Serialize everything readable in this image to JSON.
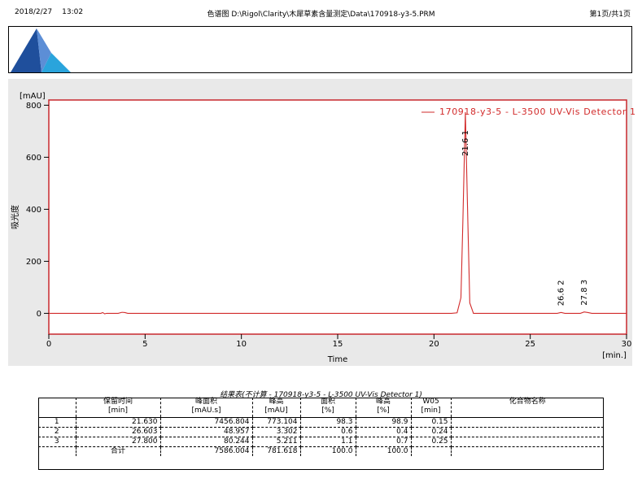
{
  "header": {
    "date": "2018/2/27",
    "time": "13:02",
    "file_path": "色谱图 D:\\Rigol\\Clarity\\木犀草素含量测定\\Data\\170918-y3-5.PRM",
    "page_info": "第1页/共1页"
  },
  "chart_data": {
    "type": "line",
    "title": "",
    "ylabel": "吸光度",
    "yunit": "[mAU]",
    "xlabel": "Time",
    "xunit": "[min.]",
    "xlim": [
      0,
      30
    ],
    "ylim": [
      -80,
      820
    ],
    "xticks": [
      0,
      5,
      10,
      15,
      20,
      25,
      30
    ],
    "yticks": [
      0,
      200,
      400,
      600,
      800
    ],
    "grid": false,
    "legend_position": "top-right",
    "series_color": "#d22b2b",
    "series": [
      {
        "name": "170918-y3-5 - L-3500 UV-Vis Detector 1",
        "x": [
          0,
          2.7,
          2.8,
          2.9,
          3.0,
          3.6,
          3.8,
          3.95,
          4.1,
          20.9,
          21.2,
          21.4,
          21.5,
          21.63,
          21.76,
          21.86,
          22.05,
          22.4,
          26.4,
          26.6,
          26.8,
          27.6,
          27.8,
          28.0,
          28.2,
          30
        ],
        "y": [
          0,
          0,
          3,
          -2,
          0,
          0,
          4,
          3,
          0,
          0,
          2,
          60,
          350,
          773.1,
          350,
          40,
          0,
          0,
          0,
          3.3,
          0,
          0,
          5.2,
          3,
          0,
          0
        ]
      }
    ],
    "peak_annotations": [
      {
        "label": "21.6  1",
        "x": 21.63,
        "y": 773.1
      },
      {
        "label": "26.6  2",
        "x": 26.603,
        "y": 3.3
      },
      {
        "label": "27.8  3",
        "x": 27.8,
        "y": 5.2
      }
    ]
  },
  "table": {
    "title": "结果表(不计算 - 170918-y3-5 - L-3500 UV-Vis Detector 1)",
    "headers": [
      {
        "line1": "",
        "line2": ""
      },
      {
        "line1": "保留时间",
        "line2": "[min]"
      },
      {
        "line1": "峰面积",
        "line2": "[mAU.s]"
      },
      {
        "line1": "峰高",
        "line2": "[mAU]"
      },
      {
        "line1": "面积",
        "line2": "[%]"
      },
      {
        "line1": "峰高",
        "line2": "[%]"
      },
      {
        "line1": "W05",
        "line2": "[min]"
      },
      {
        "line1": "化合物名称",
        "line2": ""
      }
    ],
    "rows": [
      [
        "1",
        "21.630",
        "7456.804",
        "773.104",
        "98.3",
        "98.9",
        "0.15",
        ""
      ],
      [
        "2",
        "26.603",
        "48.957",
        "3.302",
        "0.6",
        "0.4",
        "0.24",
        ""
      ],
      [
        "3",
        "27.800",
        "80.244",
        "5.211",
        "1.1",
        "0.7",
        "0.25",
        ""
      ]
    ],
    "total_row": [
      "",
      "合计",
      "7586.004",
      "781.618",
      "100.0",
      "100.0",
      "",
      ""
    ]
  }
}
